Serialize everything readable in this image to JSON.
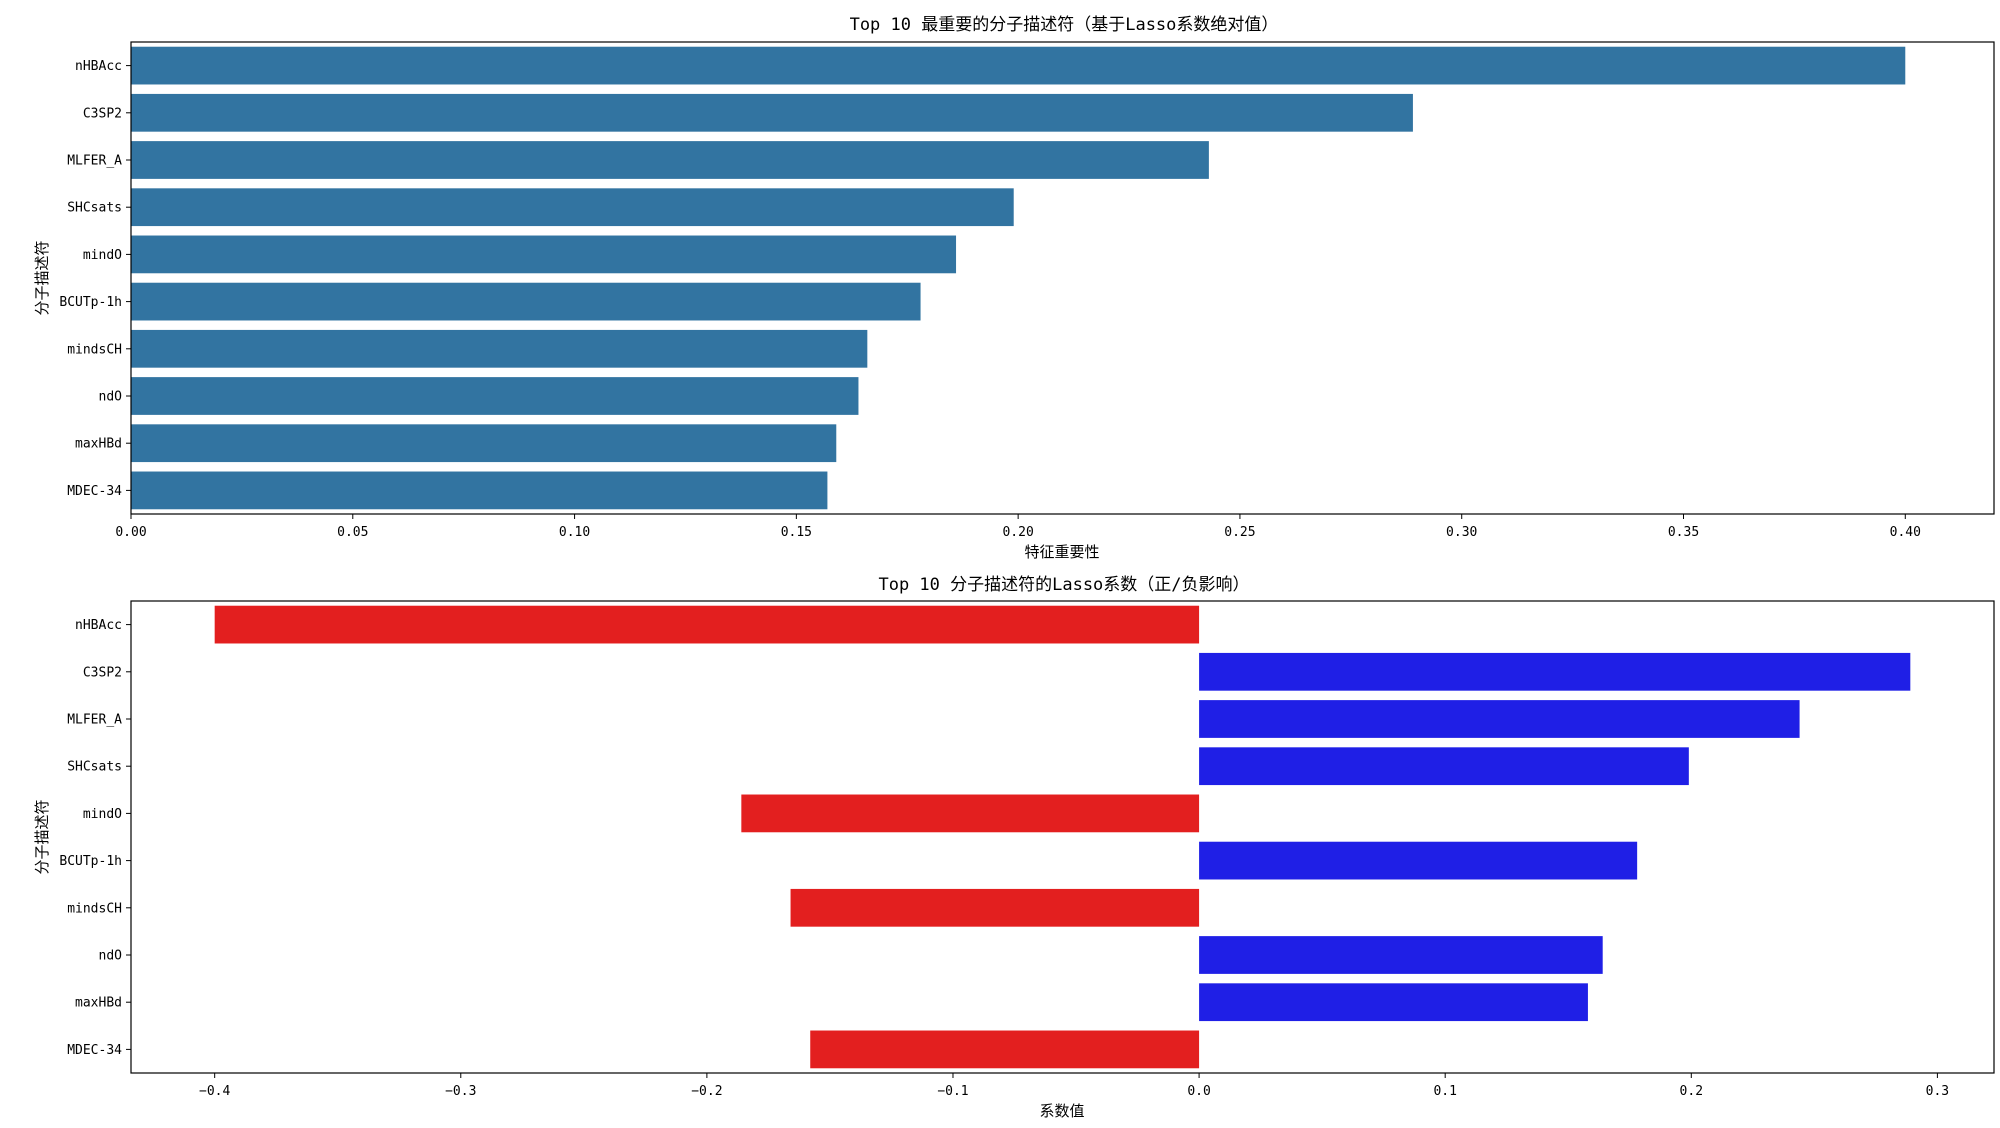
{
  "chart_data": [
    {
      "type": "bar",
      "orientation": "horizontal",
      "title": "Top 10 最重要的分子描述符（基于Lasso系数绝对值）",
      "xlabel": "特征重要性",
      "ylabel": "分子描述符",
      "categories": [
        "nHBAcc",
        "C3SP2",
        "MLFER_A",
        "SHCsats",
        "mindO",
        "BCUTp-1h",
        "mindsCH",
        "ndO",
        "maxHBd",
        "MDEC-34"
      ],
      "values": [
        0.4,
        0.289,
        0.243,
        0.199,
        0.186,
        0.178,
        0.166,
        0.164,
        0.159,
        0.157
      ],
      "xlim": [
        0.0,
        0.42
      ],
      "xticks": [
        0.0,
        0.05,
        0.1,
        0.15,
        0.2,
        0.25,
        0.3,
        0.35,
        0.4
      ],
      "xtick_labels": [
        "0.00",
        "0.05",
        "0.10",
        "0.15",
        "0.20",
        "0.25",
        "0.30",
        "0.35",
        "0.40"
      ],
      "bar_color": "#3274a1",
      "grid": false
    },
    {
      "type": "bar",
      "orientation": "horizontal",
      "title": "Top 10 分子描述符的Lasso系数（正/负影响）",
      "xlabel": "系数值",
      "ylabel": "分子描述符",
      "categories": [
        "nHBAcc",
        "C3SP2",
        "MLFER_A",
        "SHCsats",
        "mindO",
        "BCUTp-1h",
        "mindsCH",
        "ndO",
        "maxHBd",
        "MDEC-34"
      ],
      "values": [
        -0.4,
        0.289,
        0.244,
        0.199,
        -0.186,
        0.178,
        -0.166,
        0.164,
        0.158,
        -0.158
      ],
      "xlim": [
        -0.434,
        0.323
      ],
      "xticks": [
        -0.4,
        -0.3,
        -0.2,
        -0.1,
        0.0,
        0.1,
        0.2,
        0.3
      ],
      "xtick_labels": [
        "−0.4",
        "−0.3",
        "−0.2",
        "−0.1",
        "0.0",
        "0.1",
        "0.2",
        "0.3"
      ],
      "positive_color": "#1f1fe6",
      "negative_color": "#e31f1f",
      "grid": false
    }
  ]
}
